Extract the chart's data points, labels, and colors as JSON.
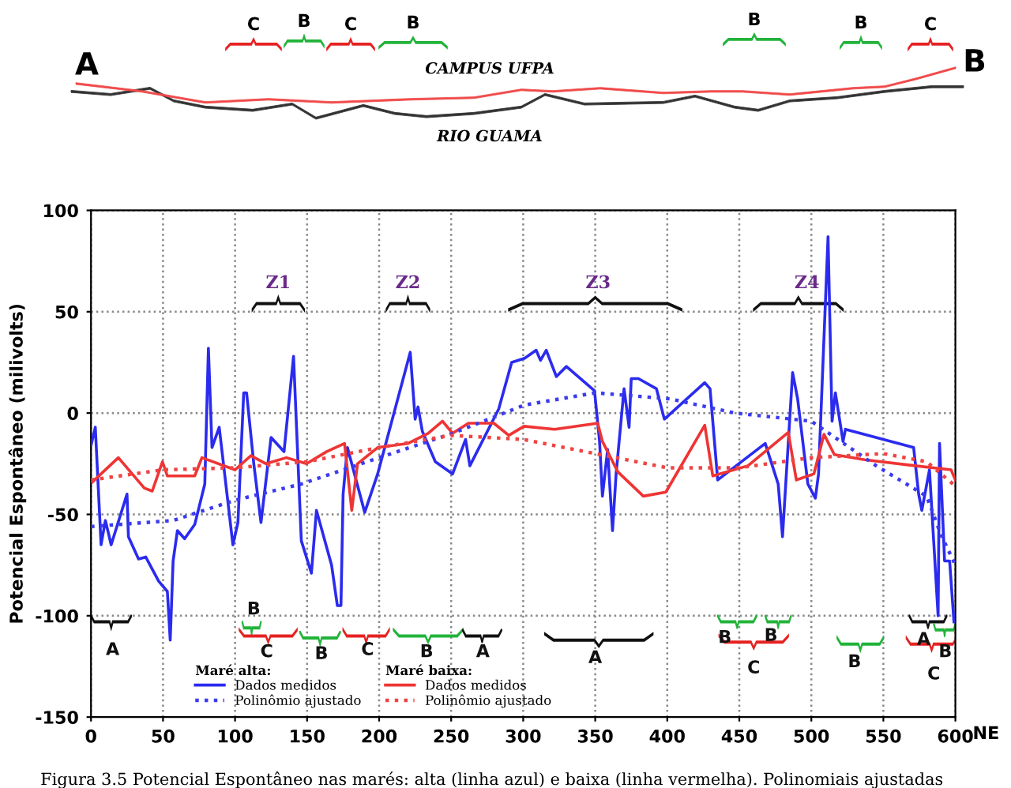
{
  "chart_data": {
    "type": "line",
    "ylabel": "Potencial Espontâneo (milivolts)",
    "xlabel": "NE",
    "xlim": [
      0,
      600
    ],
    "xticks": [
      0,
      50,
      100,
      150,
      200,
      250,
      300,
      350,
      400,
      450,
      500,
      550,
      600
    ],
    "ylim": [
      -150,
      100
    ],
    "yticks": [
      -150,
      -100,
      -50,
      0,
      50,
      100
    ],
    "grid": true,
    "legend": "bottom",
    "marker": "none",
    "series": [
      {
        "name": "Dados medidos",
        "color": "#2b2bef",
        "line_style": "solid",
        "x": [
          0,
          3,
          7,
          10,
          14,
          25,
          26,
          33,
          38,
          47,
          53,
          55,
          57,
          60,
          65,
          72,
          79,
          81.5,
          84,
          89,
          98.5,
          102,
          106,
          108,
          113,
          118,
          125,
          134,
          140.6,
          146,
          153,
          156.5,
          167,
          171,
          173.5,
          175,
          178,
          190,
          199,
          221.6,
          225,
          227,
          230,
          239,
          251,
          260,
          263,
          283,
          292,
          301,
          309,
          312,
          316,
          323,
          330,
          349.5,
          353,
          355,
          358.6,
          362,
          364.5,
          370,
          373.5,
          375,
          380,
          392.5,
          398,
          426,
          429.7,
          435,
          468,
          477,
          480,
          487,
          490.5,
          497.6,
          502.8,
          505,
          511.6,
          514.4,
          516.7,
          522,
          523.7,
          571,
          574.5,
          576.7,
          582,
          588,
          589,
          592.5,
          596,
          599
        ],
        "values": [
          -16,
          -7,
          -65,
          -53,
          -65,
          -40,
          -61,
          -72,
          -71,
          -83,
          -88,
          -112,
          -73,
          -58,
          -62,
          -55,
          -35,
          32,
          -17,
          -7,
          -65,
          -54,
          10,
          10,
          -25,
          -54,
          -12,
          -19,
          28,
          -63,
          -79,
          -48,
          -75,
          -95,
          -95,
          -40,
          -17,
          -49,
          -30,
          30,
          -3,
          3,
          -9,
          -24,
          -30,
          -13,
          -26,
          2,
          25,
          27,
          31,
          26,
          31,
          18,
          23,
          11,
          -14,
          -41,
          -18,
          -58,
          -30,
          12,
          -7,
          17,
          17,
          12,
          -3,
          15,
          12,
          -33,
          -15,
          -35,
          -61,
          20,
          7,
          -35,
          -42,
          -30,
          87,
          -4,
          10,
          -14,
          -8,
          -17,
          -40,
          -48,
          -28,
          -100,
          -15,
          -73,
          -73,
          -103
        ]
      },
      {
        "name": "Polinômio ajustado",
        "color": "#3b3bef",
        "line_style": "dotted",
        "x": [
          0,
          57,
          100,
          146,
          200,
          251,
          301,
          350,
          402,
          447,
          500,
          545,
          580,
          590,
          600
        ],
        "values": [
          -56,
          -53,
          -43,
          -35,
          -22,
          -10,
          4,
          10,
          7,
          0,
          -4,
          -26,
          -41,
          -60,
          -75
        ]
      },
      {
        "name": "Dados medidos",
        "color": "#ef3434",
        "line_style": "solid",
        "x": [
          1,
          19,
          37,
          42.5,
          49.6,
          53,
          72,
          77,
          100,
          111,
          121.5,
          135.6,
          149.6,
          163.7,
          176,
          181,
          185,
          199,
          220,
          234,
          244,
          251,
          262,
          279.6,
          290,
          300.6,
          321.8,
          351.7,
          355,
          365.7,
          383.4,
          399,
          426,
          431.6,
          456,
          484,
          489.6,
          501.8,
          508.8,
          516,
          537,
          572,
          597,
          600
        ],
        "values": [
          -34,
          -22,
          -37,
          -38.5,
          -24,
          -31,
          -31,
          -22,
          -28,
          -21,
          -25,
          -22,
          -25,
          -19,
          -15,
          -48,
          -25,
          -17,
          -15,
          -10,
          -4,
          -10,
          -5,
          -5,
          -11,
          -6.5,
          -8,
          -5,
          -14,
          -29,
          -41,
          -39,
          -6,
          -31,
          -26,
          -9.5,
          -33,
          -30,
          -10.5,
          -20.5,
          -23,
          -26,
          -28,
          -33
        ]
      },
      {
        "name": "Polinômio ajustado",
        "color": "#ef4444",
        "line_style": "dotted",
        "x": [
          0,
          50,
          100,
          150,
          200,
          250,
          300,
          350,
          400,
          450,
          500,
          550,
          580,
          600
        ],
        "values": [
          -33,
          -28,
          -27,
          -24,
          -17,
          -11,
          -13,
          -20,
          -27,
          -27,
          -22,
          -20,
          -24,
          -36
        ]
      }
    ],
    "annotations": [
      "Maré alta:",
      "Maré baixa:",
      "Figura 3.5 Potencial Espontâneo nas marés: alta (linha azul) e baixa (linha vermelha). Polinomiais ajustadas",
      "CAMPUS UFPA",
      "RIO GUAMA",
      "A",
      "B",
      "C",
      "B",
      "C",
      "B",
      "B",
      "B",
      "C",
      "Z1",
      "Z2",
      "Z3",
      "Z4",
      "A",
      "B",
      "C",
      "B",
      "C",
      "B",
      "A",
      "A",
      "B",
      "B",
      "C",
      "B",
      "A",
      "B",
      "C"
    ]
  }
}
